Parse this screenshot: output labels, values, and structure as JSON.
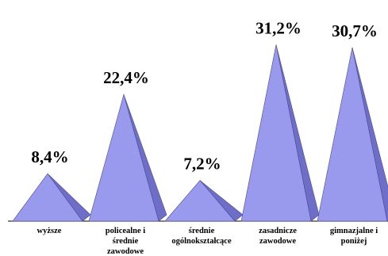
{
  "chart_data": {
    "type": "bar",
    "categories": [
      [
        "wyższe"
      ],
      [
        "policealne i",
        "średnie",
        "zawodowe"
      ],
      [
        "średnie",
        "ogólnokształcące"
      ],
      [
        "zasadnicze",
        "zawodowe"
      ],
      [
        "gimnazjalne i",
        "poniżej"
      ]
    ],
    "values": [
      8.4,
      22.4,
      7.2,
      31.2,
      30.7
    ],
    "data_labels": [
      "8,4%",
      "22,4%",
      "7,2%",
      "31,2%",
      "30,7%"
    ],
    "ylim": [
      0,
      33.5
    ],
    "grid": false,
    "mark_shape": "3d-cone",
    "colors": {
      "front": "#9999ee",
      "side": "#6e6ec8",
      "outline": "#4a4a90",
      "baseline": "#000000"
    }
  }
}
